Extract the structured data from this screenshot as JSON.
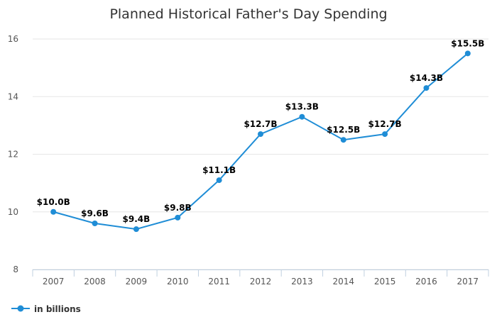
{
  "chart_data": {
    "type": "line",
    "title": "Planned Historical Father's Day Spending",
    "xlabel": "",
    "ylabel": "",
    "categories": [
      "2007",
      "2008",
      "2009",
      "2010",
      "2011",
      "2012",
      "2013",
      "2014",
      "2015",
      "2016",
      "2017"
    ],
    "ylim": [
      8,
      16
    ],
    "yticks": [
      8,
      10,
      12,
      14,
      16
    ],
    "grid": true,
    "legend_position": "bottom-left",
    "series": [
      {
        "name": "in billions",
        "color": "#1f8dd6",
        "values": [
          10.0,
          9.6,
          9.4,
          9.8,
          11.1,
          12.7,
          13.3,
          12.5,
          12.7,
          14.3,
          15.5
        ],
        "data_labels": [
          "$10.0B",
          "$9.6B",
          "$9.4B",
          "$9.8B",
          "$11.1B",
          "$12.7B",
          "$13.3B",
          "$12.5B",
          "$12.7B",
          "$14.3B",
          "$15.5B"
        ]
      }
    ]
  }
}
